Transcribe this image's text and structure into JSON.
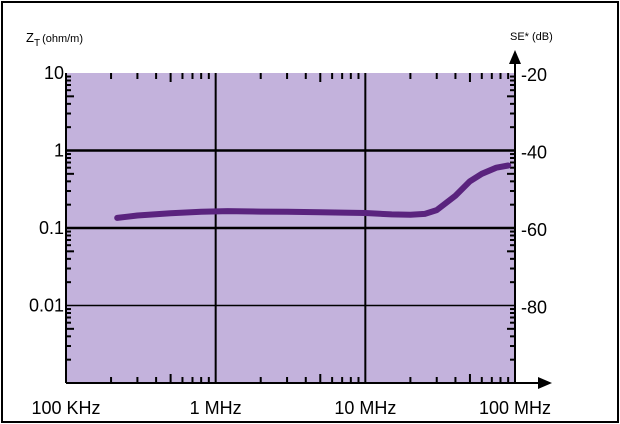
{
  "chart_data": {
    "type": "line",
    "title": "",
    "xlabel": "",
    "y_left_label_main": "Z",
    "y_left_label_sub": "T",
    "y_left_label_unit": "(ohm/m)",
    "y_right_label": "SE* (dB)",
    "x_scale": "log",
    "y_scale": "log",
    "xlim_hz": [
      100000,
      100000000
    ],
    "ylim_left": [
      0.001,
      10
    ],
    "ylim_right_db": [
      -100,
      -20
    ],
    "x_tick_values_hz": [
      100000,
      1000000,
      10000000,
      100000000
    ],
    "x_tick_labels": [
      "100 KHz",
      "1 MHz",
      "10 MHz",
      "100 MHz"
    ],
    "y_left_tick_values": [
      10,
      1,
      0.1,
      0.01
    ],
    "y_left_tick_labels": [
      "10",
      "1",
      "0.1",
      "0.01"
    ],
    "y_right_tick_values_db": [
      -20,
      -40,
      -60,
      -80
    ],
    "y_right_tick_labels": [
      "-20",
      "-40",
      "-60",
      "-80"
    ],
    "grid": true,
    "colors": {
      "plot_background": "#c3b2dc",
      "grid": "#000000",
      "series": "#5a237e",
      "frame": "#000000"
    },
    "series": [
      {
        "x_hz": [
          220000,
          300000,
          500000,
          800000,
          1200000,
          2000000,
          3000000,
          5000000,
          7000000,
          10000000,
          15000000,
          20000000,
          25000000,
          30000000,
          40000000,
          50000000,
          60000000,
          75000000,
          90000000
        ],
        "z": [
          0.135,
          0.145,
          0.155,
          0.162,
          0.165,
          0.163,
          0.162,
          0.16,
          0.158,
          0.156,
          0.15,
          0.148,
          0.152,
          0.17,
          0.26,
          0.4,
          0.5,
          0.6,
          0.64
        ]
      }
    ]
  }
}
